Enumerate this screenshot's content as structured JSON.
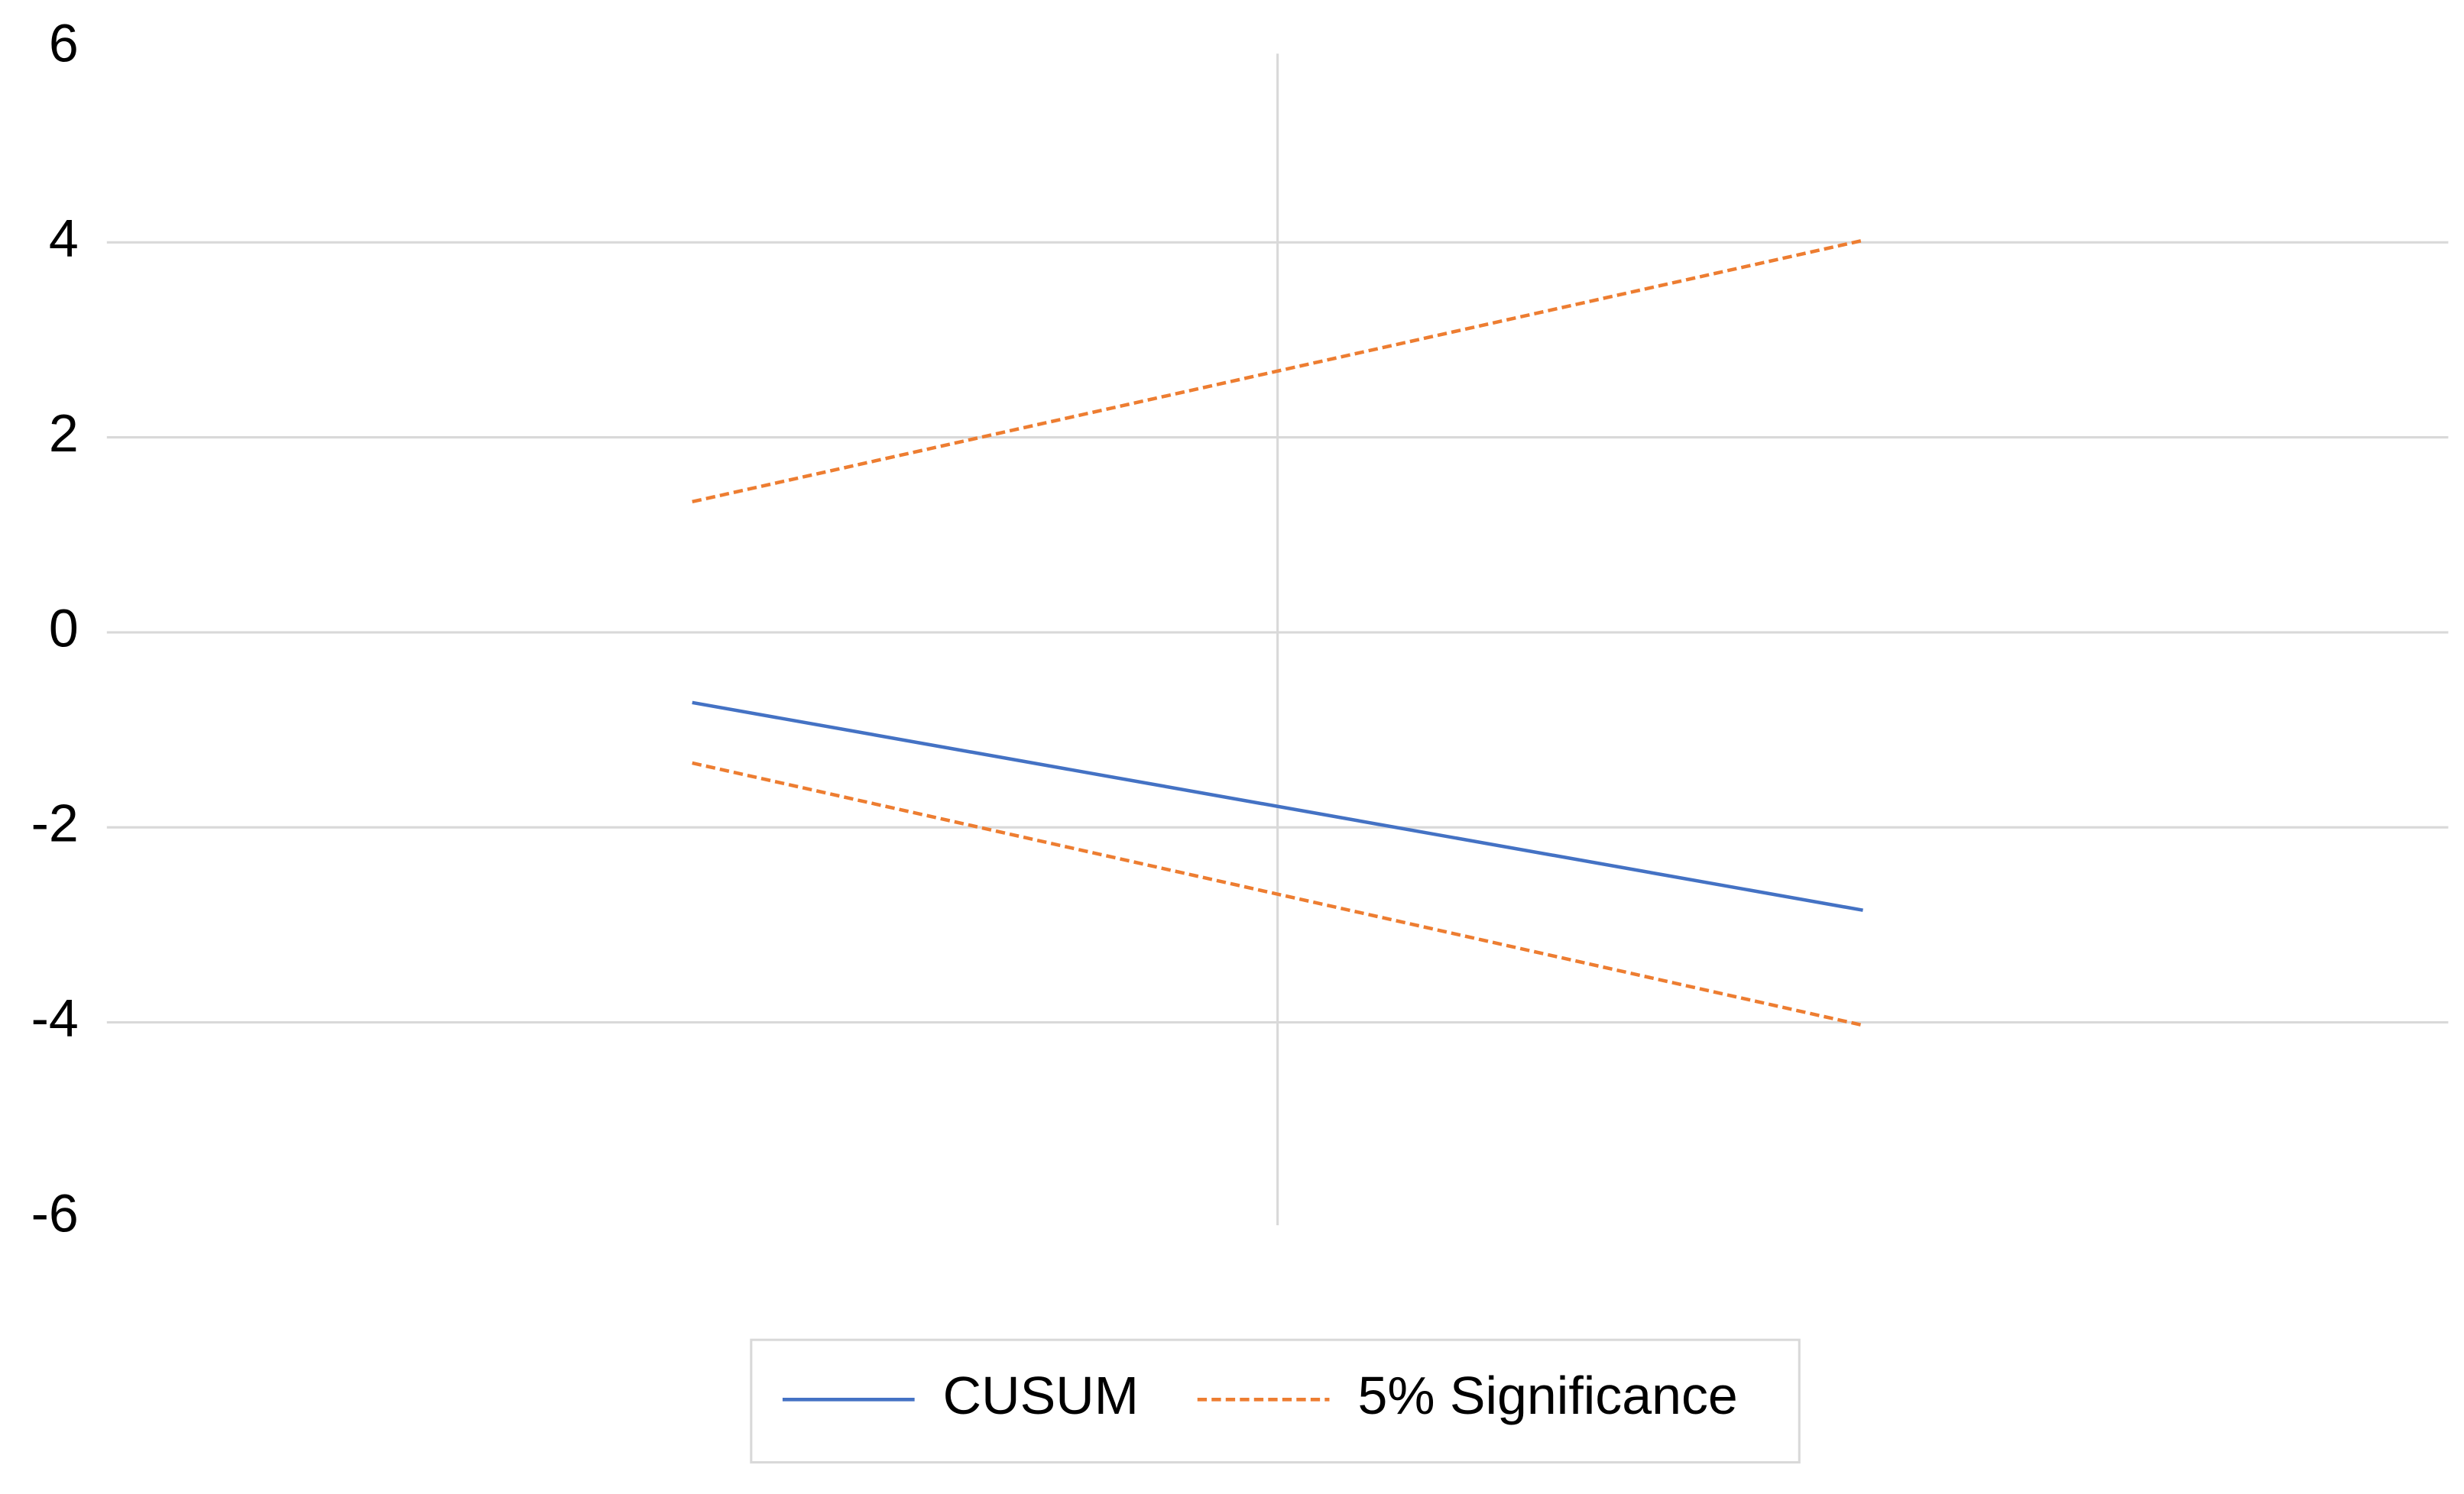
{
  "chart_data": {
    "type": "line",
    "categories": [
      null,
      null
    ],
    "series": [
      {
        "name": "CUSUM",
        "color": "#4472c4",
        "values": [
          -0.72,
          -2.85
        ]
      },
      {
        "name": "5% Significance",
        "color": "#ed7d31",
        "dashed": true,
        "values": [
          1.34,
          4.02
        ]
      },
      {
        "color": "#ed7d31",
        "dashed": true,
        "values": [
          -1.34,
          -4.03
        ]
      }
    ],
    "ylim": [
      -6,
      6
    ],
    "yticks": [
      -6,
      -4,
      -2,
      0,
      2,
      4,
      6
    ],
    "grid": true,
    "legend": "bottom"
  }
}
